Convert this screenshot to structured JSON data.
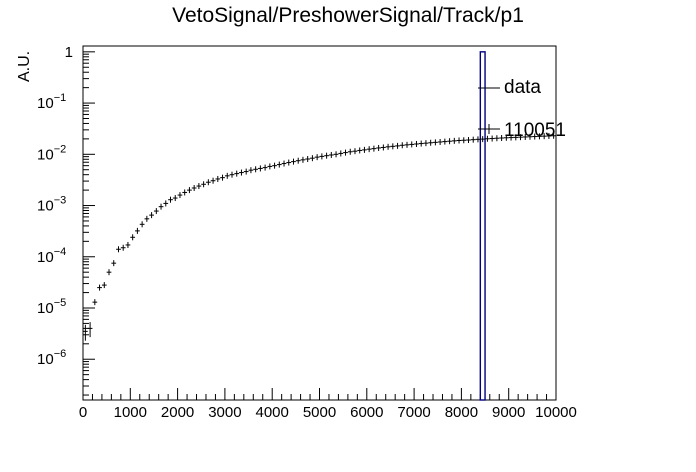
{
  "chart_data": {
    "type": "histogram",
    "title": "VetoSignal/PreshowerSignal/Track/p1",
    "xlabel": "",
    "ylabel": "A.U.",
    "xlim": [
      0,
      10000
    ],
    "ylim": [
      1.6e-07,
      1.3
    ],
    "yscale": "log",
    "grid": false,
    "legend_placement": "top-right",
    "xticks": [
      0,
      1000,
      2000,
      3000,
      4000,
      5000,
      6000,
      7000,
      8000,
      9000,
      10000
    ],
    "xtick_labels": [
      "0",
      "1000",
      "2000",
      "3000",
      "4000",
      "5000",
      "6000",
      "7000",
      "8000",
      "9000",
      "10000"
    ],
    "yticks": [
      1e-06,
      1e-05,
      0.0001,
      0.001,
      0.01,
      0.1,
      1
    ],
    "ytick_labels": [
      {
        "base": "10",
        "exp": "−6"
      },
      {
        "base": "10",
        "exp": "−5"
      },
      {
        "base": "10",
        "exp": "−4"
      },
      {
        "base": "10",
        "exp": "−3"
      },
      {
        "base": "10",
        "exp": "−2"
      },
      {
        "base": "10",
        "exp": "−1"
      },
      {
        "base": "1",
        "exp": ""
      }
    ],
    "series": [
      {
        "name": "data",
        "style": "bar",
        "color": "#000080",
        "x": [
          8450
        ],
        "width": 100,
        "values": [
          1.0
        ]
      },
      {
        "name": "110051",
        "style": "errorbar",
        "color": "#000000",
        "binwidth": 100,
        "x": [
          50,
          150,
          250,
          350,
          450,
          550,
          650,
          750,
          850,
          950,
          1050,
          1150,
          1250,
          1350,
          1450,
          1550,
          1650,
          1750,
          1850,
          1950,
          2050,
          2150,
          2250,
          2350,
          2450,
          2550,
          2650,
          2750,
          2850,
          2950,
          3050,
          3150,
          3250,
          3350,
          3450,
          3550,
          3650,
          3750,
          3850,
          3950,
          4050,
          4150,
          4250,
          4350,
          4450,
          4550,
          4650,
          4750,
          4850,
          4950,
          5050,
          5150,
          5250,
          5350,
          5450,
          5550,
          5650,
          5750,
          5850,
          5950,
          6050,
          6150,
          6250,
          6350,
          6450,
          6550,
          6650,
          6750,
          6850,
          6950,
          7050,
          7150,
          7250,
          7350,
          7450,
          7550,
          7650,
          7750,
          7850,
          7950,
          8050,
          8150,
          8250,
          8350,
          8450,
          8550,
          8650,
          8750,
          8850,
          8950,
          9050,
          9150,
          9250,
          9350,
          9450,
          9550,
          9650,
          9750,
          9850,
          9950
        ],
        "values": [
          3.5e-06,
          4e-06,
          1.3e-05,
          2.5e-05,
          2.8e-05,
          5e-05,
          7.5e-05,
          0.00014,
          0.00015,
          0.00017,
          0.00024,
          0.00032,
          0.00043,
          0.00055,
          0.00065,
          0.00078,
          0.00095,
          0.0011,
          0.0013,
          0.0014,
          0.0016,
          0.0018,
          0.002,
          0.0022,
          0.0024,
          0.0026,
          0.00285,
          0.00305,
          0.0033,
          0.0035,
          0.0038,
          0.004,
          0.0042,
          0.0044,
          0.0046,
          0.0049,
          0.0051,
          0.0053,
          0.0055,
          0.0058,
          0.006,
          0.0063,
          0.0066,
          0.0069,
          0.0072,
          0.0075,
          0.0078,
          0.0081,
          0.0084,
          0.0088,
          0.0091,
          0.0094,
          0.0097,
          0.01,
          0.0104,
          0.0108,
          0.0112,
          0.0115,
          0.0119,
          0.0122,
          0.0126,
          0.0129,
          0.0133,
          0.0136,
          0.014,
          0.0143,
          0.0146,
          0.015,
          0.0153,
          0.0156,
          0.0159,
          0.0162,
          0.0165,
          0.0168,
          0.0171,
          0.0174,
          0.0177,
          0.018,
          0.0183,
          0.0186,
          0.0188,
          0.019,
          0.0193,
          0.0196,
          0.0198,
          0.0201,
          0.0203,
          0.0206,
          0.0208,
          0.021,
          0.0212,
          0.0214,
          0.0216,
          0.0218,
          0.022,
          0.0222,
          0.0224,
          0.0226,
          0.0228,
          0.023
        ],
        "errors": [
          1.2e-06,
          1.3e-06,
          0,
          0,
          0,
          0,
          0,
          0,
          0,
          0,
          0,
          0,
          0,
          0,
          0,
          0,
          0,
          0,
          0,
          0,
          0,
          0,
          0,
          0,
          0,
          0,
          0,
          0,
          0,
          0,
          0,
          0,
          0,
          0,
          0,
          0,
          0,
          0,
          0,
          0,
          0,
          0,
          0,
          0,
          0,
          0,
          0,
          0,
          0,
          0,
          0,
          0,
          0,
          0,
          0,
          0,
          0,
          0,
          0,
          0,
          0,
          0,
          0,
          0,
          0,
          0,
          0,
          0,
          0,
          0,
          0,
          0,
          0,
          0,
          0,
          0,
          0,
          0,
          0,
          0,
          0,
          0,
          0,
          0,
          0,
          0,
          0,
          0,
          0,
          0,
          0,
          0,
          0,
          0,
          0,
          0,
          0,
          0,
          0,
          0
        ]
      }
    ]
  }
}
